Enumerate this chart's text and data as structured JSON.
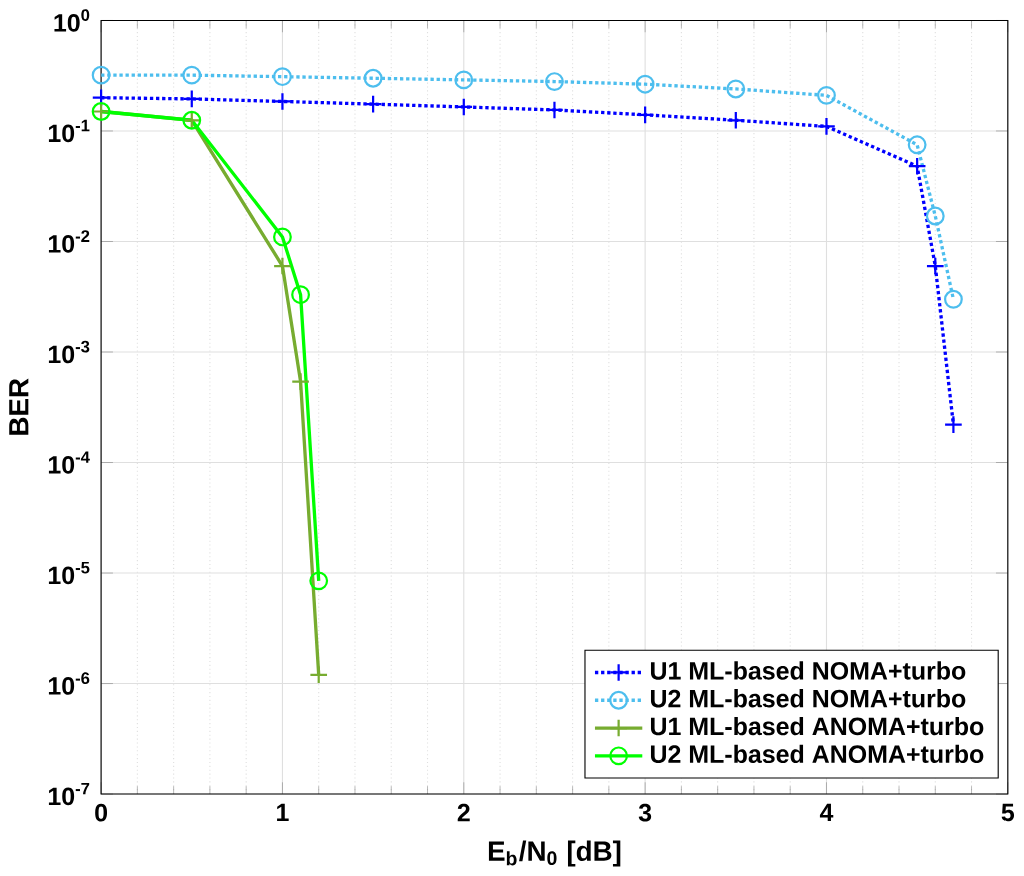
{
  "chart_data": {
    "type": "line",
    "xlabel": "E$_{b}$/N$_{0}$ [dB]",
    "ylabel": "BER",
    "log": "y",
    "grid": true,
    "legend": "bottom right",
    "xlim": [
      0,
      5
    ],
    "xticks": [
      0,
      1,
      2,
      3,
      4,
      5
    ],
    "ylim": [
      1e-07,
      1
    ],
    "yticks": [
      {
        "value": 1e-07,
        "label": "10$^{-7}$"
      },
      {
        "value": 1e-06,
        "label": "10$^{-6}$"
      },
      {
        "value": 1e-05,
        "label": "10$^{-5}$"
      },
      {
        "value": 0.0001,
        "label": "10$^{-4}$"
      },
      {
        "value": 0.001,
        "label": "10$^{-3}$"
      },
      {
        "value": 0.01,
        "label": "10$^{-2}$"
      },
      {
        "value": 0.1,
        "label": "10$^{-1}$"
      },
      {
        "value": 1,
        "label": "10$^{0}$"
      }
    ],
    "series": [
      {
        "name": "U1 ML-based NOMA+turbo",
        "color": "#0000ff",
        "marker": "cross",
        "line_style": "dotted",
        "x": [
          0,
          0.5,
          1,
          1.5,
          2,
          2.5,
          3,
          3.5,
          4,
          4.5,
          4.6,
          4.7
        ],
        "values": [
          0.2,
          0.195,
          0.185,
          0.175,
          0.165,
          0.155,
          0.14,
          0.125,
          0.11,
          0.048,
          0.006,
          0.00022
        ]
      },
      {
        "name": "U2 ML-based NOMA+turbo",
        "color": "#4dbeee",
        "marker": "circle",
        "line_style": "dotted",
        "x": [
          0,
          0.5,
          1,
          1.5,
          2,
          2.5,
          3,
          3.5,
          4,
          4.5,
          4.6,
          4.7
        ],
        "values": [
          0.32,
          0.32,
          0.31,
          0.3,
          0.29,
          0.28,
          0.265,
          0.24,
          0.21,
          0.075,
          0.017,
          0.003
        ]
      },
      {
        "name": "U1 ML-based ANOMA+turbo",
        "color": "#77ac30",
        "marker": "cross",
        "line_style": "solid",
        "x": [
          0,
          0.5,
          1,
          1.1,
          1.2
        ],
        "values": [
          0.15,
          0.125,
          0.006,
          0.00054,
          1.2e-06
        ]
      },
      {
        "name": "U2 ML-based ANOMA+turbo",
        "color": "#00ff00",
        "marker": "circle",
        "line_style": "solid",
        "x": [
          0,
          0.5,
          1,
          1.1,
          1.2
        ],
        "values": [
          0.15,
          0.125,
          0.011,
          0.0033,
          8.5e-06
        ]
      }
    ]
  }
}
